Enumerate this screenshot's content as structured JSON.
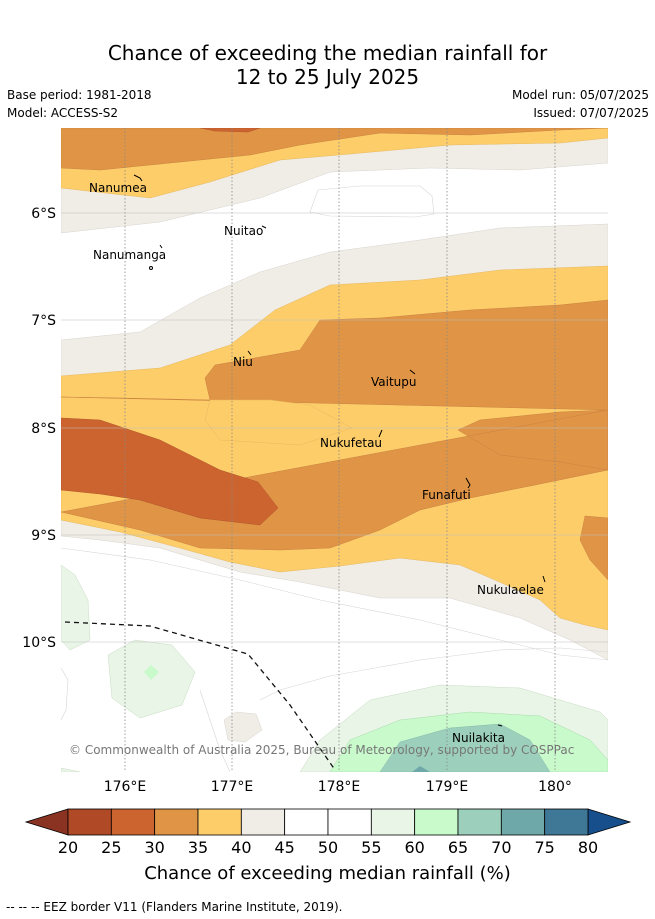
{
  "header": {
    "title_line1": "Chance of exceeding the median rainfall for",
    "title_line2": "12 to 25 July 2025",
    "base_period": "Base period: 1981-2018",
    "model": "Model: ACCESS-S2",
    "model_run": "Model run: 05/07/2025",
    "issued": "Issued: 07/07/2025"
  },
  "map": {
    "lon_ticks": [
      "176°E",
      "177°E",
      "178°E",
      "179°E",
      "180°"
    ],
    "lat_ticks": [
      "6°S",
      "7°S",
      "8°S",
      "9°S",
      "10°S"
    ],
    "places": [
      "Nanumea",
      "Nuitao",
      "Nanumanga",
      "Niu",
      "Vaitupu",
      "Nukufetau",
      "Funafuti",
      "Nukulaelae",
      "Nuilakita"
    ],
    "copyright": "© Commonwealth of Australia 2025, Bureau of Meteorology, supported by COSPPac"
  },
  "colorbar": {
    "ticks": [
      "20",
      "25",
      "30",
      "35",
      "40",
      "45",
      "50",
      "55",
      "60",
      "65",
      "70",
      "75",
      "80"
    ],
    "colors": [
      "#b04a26",
      "#cc6430",
      "#e09446",
      "#fdcd6a",
      "#f0ece6",
      "#ffffff",
      "#ffffff",
      "#e9f5e6",
      "#c8facc",
      "#9cd0bd",
      "#6fa8a8",
      "#3f7797"
    ],
    "low_color": "#8a3322",
    "high_color": "#174f8c",
    "label": "Chance of exceeding median rainfall (%)"
  },
  "legend": {
    "eez_note": "--  --  -- EEZ border V11 (Flanders Marine Institute, 2019)."
  }
}
